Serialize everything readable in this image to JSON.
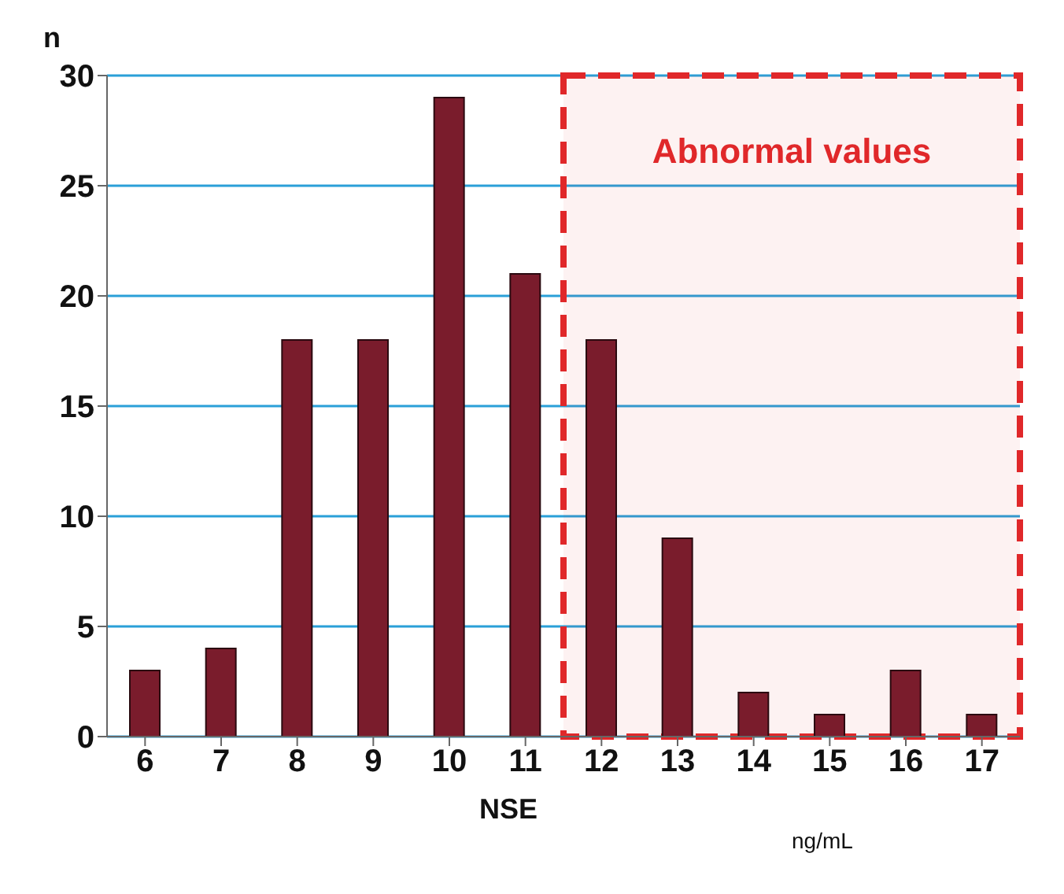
{
  "chart_data": {
    "type": "bar",
    "xlabel": "NSE",
    "ylabel": "n",
    "categories": [
      "6",
      "7",
      "8",
      "9",
      "10",
      "11",
      "12",
      "13",
      "14",
      "15",
      "16",
      "17"
    ],
    "values": [
      3,
      4,
      18,
      18,
      29,
      21,
      18,
      9,
      2,
      1,
      3,
      1
    ],
    "color": "#7a1c2c",
    "ylim": [
      0,
      30
    ],
    "yticks": [
      0,
      5,
      10,
      15,
      20,
      25,
      30
    ],
    "grid": "y",
    "bands": [
      {
        "axis": "x",
        "from": "12",
        "to": "17",
        "label": "Abnormal values",
        "color": "#e0282a"
      }
    ],
    "annotations": [
      "ng/mL"
    ]
  }
}
